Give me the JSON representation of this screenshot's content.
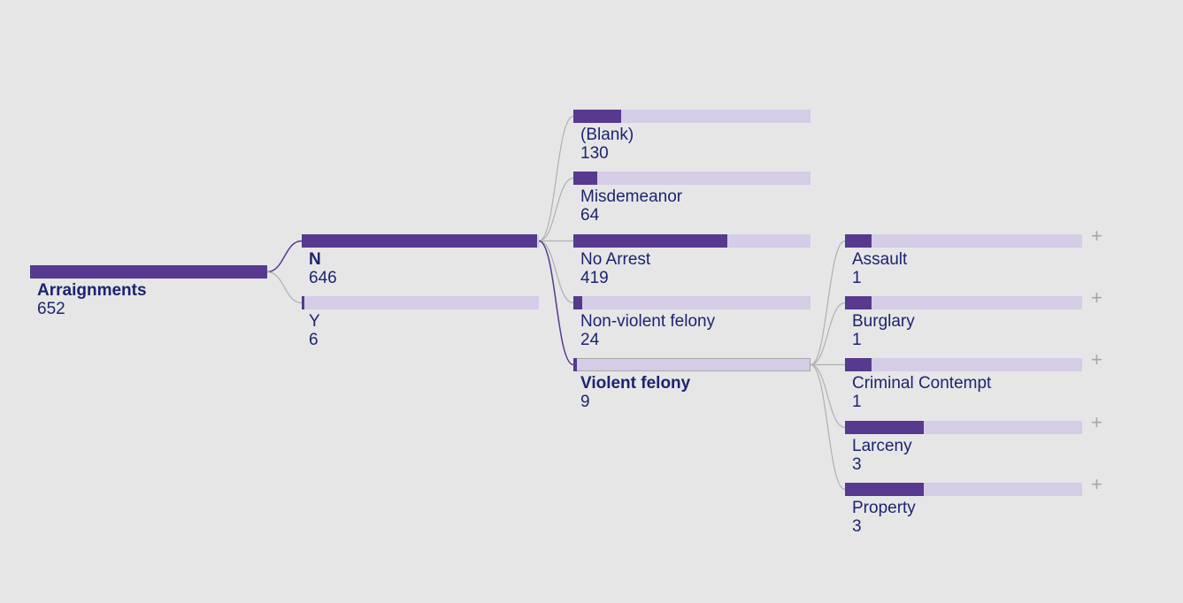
{
  "colors": {
    "accent": "#57398f",
    "track": "#d5cce6",
    "text": "#1c2470",
    "link": "#b0b0b0",
    "background": "#e6e6e7"
  },
  "tree": {
    "root": {
      "name": "Arraignments",
      "value": "652"
    },
    "level1": [
      {
        "name": "N",
        "value": "646"
      },
      {
        "name": "Y",
        "value": "6"
      }
    ],
    "level2": [
      {
        "name": "(Blank)",
        "value": "130"
      },
      {
        "name": "Misdemeanor",
        "value": "64"
      },
      {
        "name": "No Arrest",
        "value": "419"
      },
      {
        "name": "Non-violent felony",
        "value": "24"
      },
      {
        "name": "Violent felony",
        "value": "9"
      }
    ],
    "level3": [
      {
        "name": "Assault",
        "value": "1",
        "fill": 0.111
      },
      {
        "name": "Burglary",
        "value": "1",
        "fill": 0.111
      },
      {
        "name": "Criminal Contempt",
        "value": "1",
        "fill": 0.111
      },
      {
        "name": "Larceny",
        "value": "3",
        "fill": 0.333
      },
      {
        "name": "Property",
        "value": "3",
        "fill": 0.333
      }
    ],
    "expand_symbol": "+"
  }
}
